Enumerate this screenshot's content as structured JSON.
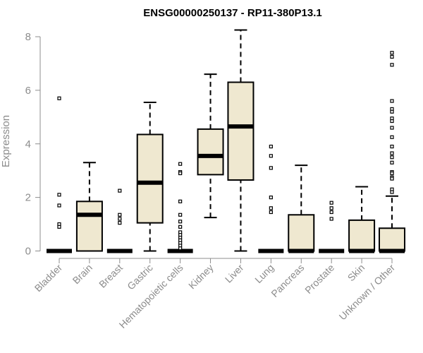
{
  "chart_data": {
    "type": "boxplot",
    "title": "ENSG00000250137 - RP11-380P13.1",
    "xlabel": "",
    "ylabel": "Expression",
    "ylim": [
      -0.15,
      8.3
    ],
    "yticks": [
      0,
      2,
      4,
      6,
      8
    ],
    "grid": false,
    "box_fill": "#efe8d0",
    "box_stroke": "#000000",
    "axis_color": "#8c8c8c",
    "categories": [
      "Bladder",
      "Brain",
      "Breast",
      "Gastric",
      "Hematopoietic cells",
      "Kidney",
      "Liver",
      "Lung",
      "Pancreas",
      "Prostate",
      "Skin",
      "Unknown / Other"
    ],
    "boxes": [
      {
        "category": "Bladder",
        "whisker_low": 0,
        "q1": 0,
        "median": 0,
        "q3": 0,
        "whisker_high": 0,
        "outliers": [
          5.7,
          2.1,
          1.7,
          1.0,
          0.9
        ]
      },
      {
        "category": "Brain",
        "whisker_low": 0,
        "q1": 0,
        "median": 1.35,
        "q3": 1.85,
        "whisker_high": 3.3,
        "outliers": []
      },
      {
        "category": "Breast",
        "whisker_low": 0,
        "q1": 0,
        "median": 0,
        "q3": 0,
        "whisker_high": 0,
        "outliers": [
          2.25,
          1.35,
          1.2,
          1.05
        ]
      },
      {
        "category": "Gastric",
        "whisker_low": 0,
        "q1": 1.05,
        "median": 2.55,
        "q3": 4.35,
        "whisker_high": 5.55,
        "outliers": []
      },
      {
        "category": "Hematopoietic cells",
        "whisker_low": 0,
        "q1": 0,
        "median": 0,
        "q3": 0,
        "whisker_high": 0,
        "outliers": [
          3.25,
          2.95,
          2.9,
          1.85,
          1.35,
          1.1,
          0.9,
          0.7,
          0.6,
          0.5,
          0.4,
          0.3,
          0.2,
          0.1
        ]
      },
      {
        "category": "Kidney",
        "whisker_low": 1.25,
        "q1": 2.85,
        "median": 3.55,
        "q3": 4.55,
        "whisker_high": 6.6,
        "outliers": []
      },
      {
        "category": "Liver",
        "whisker_low": 0,
        "q1": 2.65,
        "median": 4.65,
        "q3": 6.3,
        "whisker_high": 8.25,
        "outliers": []
      },
      {
        "category": "Lung",
        "whisker_low": 0,
        "q1": 0,
        "median": 0,
        "q3": 0,
        "whisker_high": 0,
        "outliers": [
          3.9,
          3.55,
          3.1,
          2.0,
          1.6,
          1.45
        ]
      },
      {
        "category": "Pancreas",
        "whisker_low": 0,
        "q1": 0,
        "median": 0,
        "q3": 1.35,
        "whisker_high": 3.2,
        "outliers": []
      },
      {
        "category": "Prostate",
        "whisker_low": 0,
        "q1": 0,
        "median": 0,
        "q3": 0,
        "whisker_high": 0,
        "outliers": [
          1.8,
          1.6,
          1.45,
          1.2
        ]
      },
      {
        "category": "Skin",
        "whisker_low": 0,
        "q1": 0,
        "median": 0,
        "q3": 1.15,
        "whisker_high": 2.4,
        "outliers": []
      },
      {
        "category": "Unknown / Other",
        "whisker_low": 0,
        "q1": 0,
        "median": 0,
        "q3": 0.85,
        "whisker_high": 2.05,
        "outliers": [
          7.4,
          7.25,
          6.95,
          5.6,
          5.3,
          5.2,
          4.95,
          4.85,
          4.6,
          4.25,
          3.9,
          3.65,
          3.5,
          3.3,
          2.95,
          2.9,
          2.75,
          2.7,
          2.3,
          2.2
        ]
      }
    ]
  }
}
